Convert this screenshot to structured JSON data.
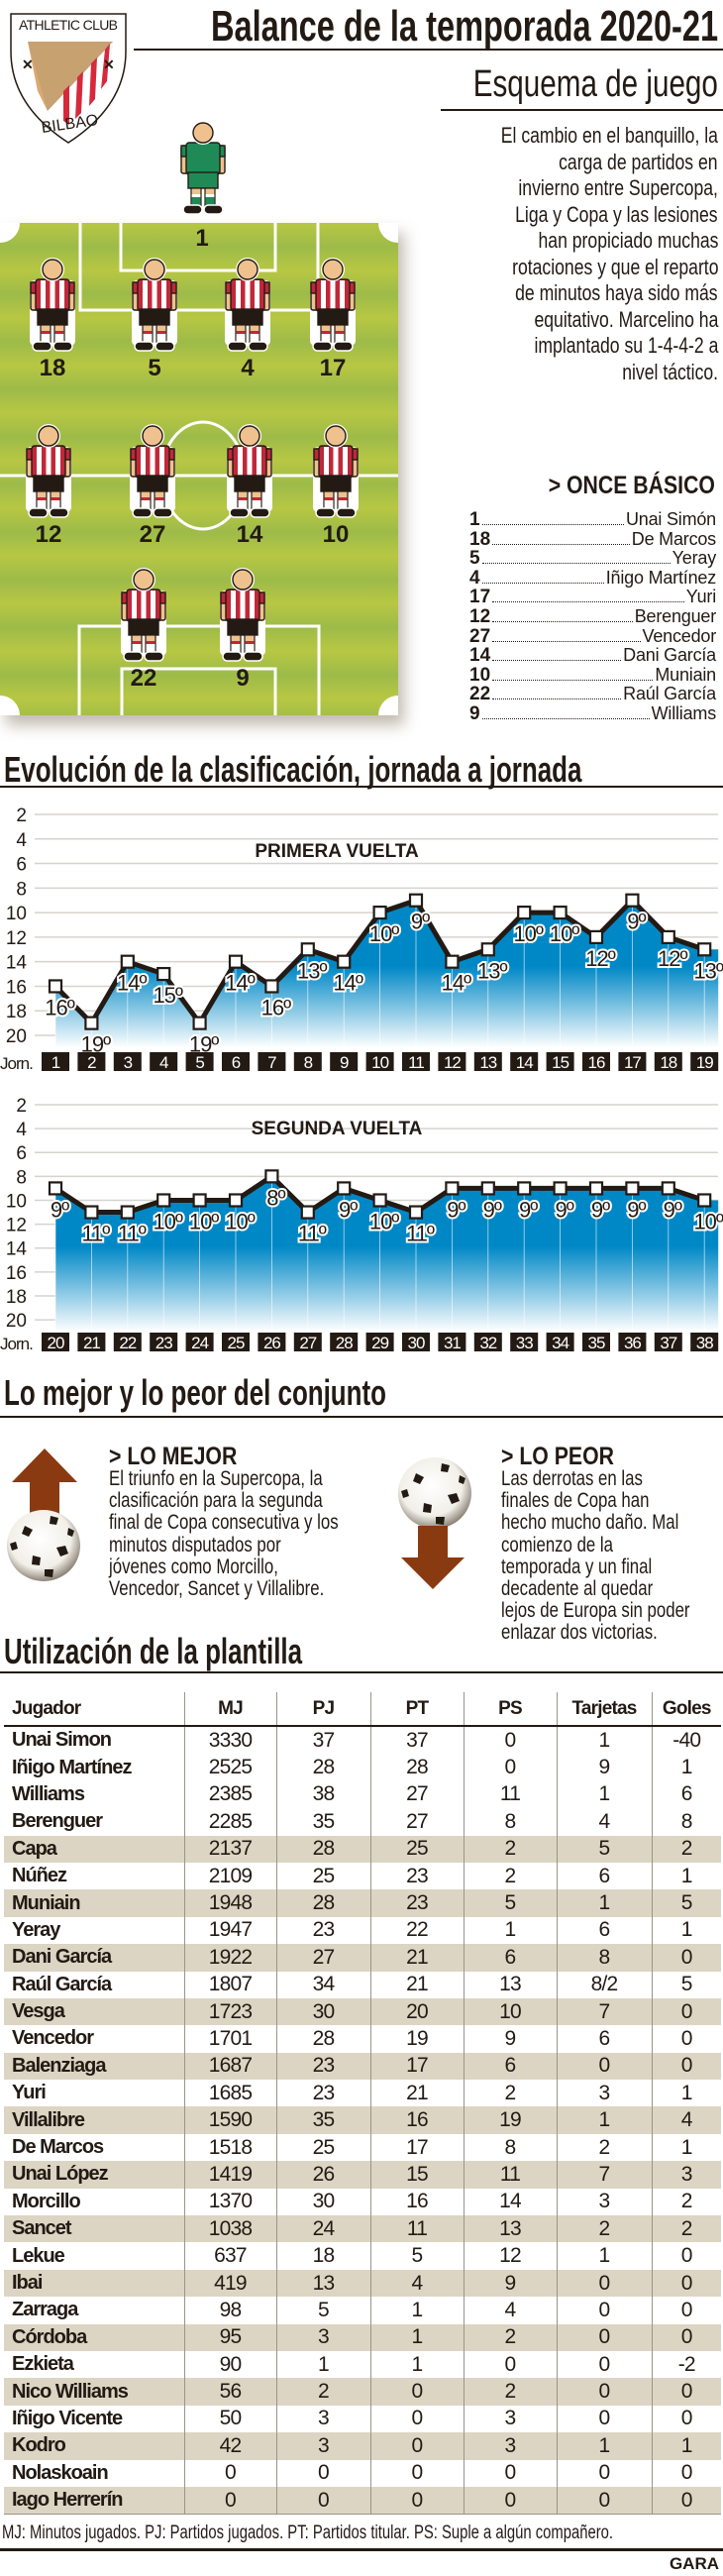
{
  "header": {
    "title": "Balance de la temporada 2020-21",
    "crest_top": "ATHLETIC CLUB",
    "crest_bottom": "BILBAO"
  },
  "esquema": {
    "title": "Esquema de juego",
    "lines": [
      "El cambio en el banquillo, la",
      "carga de partidos en",
      "invierno entre Supercopa,",
      "Liga y Copa y las lesiones",
      "han propiciado muchas",
      "rotaciones y que el reparto",
      "de minutos haya sido más",
      "equitativo. Marcelino ha",
      "implantado su 1-4-4-2 a",
      "nivel táctico."
    ],
    "goalkeeper_number": "1",
    "field_numbers": [
      "18",
      "5",
      "4",
      "17",
      "12",
      "27",
      "14",
      "10",
      "22",
      "9"
    ]
  },
  "once": {
    "title": "> ONCE BÁSICO",
    "items": [
      {
        "n": "1",
        "name": "Unai Simón"
      },
      {
        "n": "18",
        "name": "De Marcos"
      },
      {
        "n": "5",
        "name": "Yeray"
      },
      {
        "n": "4",
        "name": "Iñigo Martínez"
      },
      {
        "n": "17",
        "name": "Yuri"
      },
      {
        "n": "12",
        "name": "Berenguer"
      },
      {
        "n": "27",
        "name": "Vencedor"
      },
      {
        "n": "14",
        "name": "Dani García"
      },
      {
        "n": "10",
        "name": "Muniain"
      },
      {
        "n": "22",
        "name": "Raúl García"
      },
      {
        "n": "9",
        "name": "Williams"
      }
    ]
  },
  "evolucion": {
    "title": "Evolución de la clasificación, jornada a jornada",
    "jorn_label": "Jorn."
  },
  "chart_data": [
    {
      "type": "line",
      "title": "PRIMERA VUELTA",
      "xlabel": "Jorn.",
      "ylabel": "",
      "x": [
        1,
        2,
        3,
        4,
        5,
        6,
        7,
        8,
        9,
        10,
        11,
        12,
        13,
        14,
        15,
        16,
        17,
        18,
        19
      ],
      "values": [
        16,
        19,
        14,
        15,
        19,
        14,
        16,
        13,
        14,
        10,
        9,
        14,
        13,
        10,
        10,
        12,
        9,
        12,
        13
      ],
      "label_suffix": "º",
      "yticks": [
        2,
        4,
        6,
        8,
        10,
        12,
        14,
        16,
        18,
        20
      ],
      "ylim": [
        2,
        20
      ],
      "y_inverted": true,
      "grid": true
    },
    {
      "type": "line",
      "title": "SEGUNDA VUELTA",
      "xlabel": "Jorn.",
      "ylabel": "",
      "x": [
        20,
        21,
        22,
        23,
        24,
        25,
        26,
        27,
        28,
        29,
        30,
        31,
        32,
        33,
        34,
        35,
        36,
        37,
        38
      ],
      "values": [
        9,
        11,
        11,
        10,
        10,
        10,
        8,
        11,
        9,
        10,
        11,
        9,
        9,
        9,
        9,
        9,
        9,
        9,
        10
      ],
      "label_suffix": "º",
      "yticks": [
        2,
        4,
        6,
        8,
        10,
        12,
        14,
        16,
        18,
        20
      ],
      "ylim": [
        2,
        20
      ],
      "y_inverted": true,
      "grid": true
    }
  ],
  "mejor_peor": {
    "title": "Lo mejor y lo peor del conjunto",
    "mejor": {
      "title": "> LO MEJOR",
      "lines": [
        "El triunfo en la Supercopa, la",
        "clasificación para la segunda",
        "final de Copa consecutiva y los",
        "minutos disputados por",
        "jóvenes como Morcillo,",
        "Vencedor, Sancet y Villalibre."
      ]
    },
    "peor": {
      "title": "> LO PEOR",
      "lines": [
        "Las derrotas en las",
        "finales de Copa han",
        "hecho mucho daño. Mal",
        "comienzo de la",
        "temporada y un final",
        "decadente al quedar",
        "lejos de Europa sin poder",
        "enlazar dos victorias."
      ]
    }
  },
  "plantilla": {
    "title": "Utilización de la plantilla",
    "columns": [
      "Jugador",
      "MJ",
      "PJ",
      "PT",
      "PS",
      "Tarjetas",
      "Goles"
    ],
    "rows": [
      [
        "Unai Simon",
        "3330",
        "37",
        "37",
        "0",
        "1",
        "-40"
      ],
      [
        "Iñigo Martínez",
        "2525",
        "28",
        "28",
        "0",
        "9",
        "1"
      ],
      [
        "Williams",
        "2385",
        "38",
        "27",
        "11",
        "1",
        "6"
      ],
      [
        "Berenguer",
        "2285",
        "35",
        "27",
        "8",
        "4",
        "8"
      ],
      [
        "Capa",
        "2137",
        "28",
        "25",
        "2",
        "5",
        "2"
      ],
      [
        "Núñez",
        "2109",
        "25",
        "23",
        "2",
        "6",
        "1"
      ],
      [
        "Muniain",
        "1948",
        "28",
        "23",
        "5",
        "1",
        "5"
      ],
      [
        "Yeray",
        "1947",
        "23",
        "22",
        "1",
        "6",
        "1"
      ],
      [
        "Dani García",
        "1922",
        "27",
        "21",
        "6",
        "8",
        "0"
      ],
      [
        "Raúl García",
        "1807",
        "34",
        "21",
        "13",
        "8/2",
        "5"
      ],
      [
        "Vesga",
        "1723",
        "30",
        "20",
        "10",
        "7",
        "0"
      ],
      [
        "Vencedor",
        "1701",
        "28",
        "19",
        "9",
        "6",
        "0"
      ],
      [
        "Balenziaga",
        "1687",
        "23",
        "17",
        "6",
        "0",
        "0"
      ],
      [
        "Yuri",
        "1685",
        "23",
        "21",
        "2",
        "3",
        "1"
      ],
      [
        "Villalibre",
        "1590",
        "35",
        "16",
        "19",
        "1",
        "4"
      ],
      [
        "De Marcos",
        "1518",
        "25",
        "17",
        "8",
        "2",
        "1"
      ],
      [
        "Unai López",
        "1419",
        "26",
        "15",
        "11",
        "7",
        "3"
      ],
      [
        "Morcillo",
        "1370",
        "30",
        "16",
        "14",
        "3",
        "2"
      ],
      [
        "Sancet",
        "1038",
        "24",
        "11",
        "13",
        "2",
        "2"
      ],
      [
        "Lekue",
        "637",
        "18",
        "5",
        "12",
        "1",
        "0"
      ],
      [
        "Ibai",
        "419",
        "13",
        "4",
        "9",
        "0",
        "0"
      ],
      [
        "Zarraga",
        "98",
        "5",
        "1",
        "4",
        "0",
        "0"
      ],
      [
        "Córdoba",
        "95",
        "3",
        "1",
        "2",
        "0",
        "0"
      ],
      [
        "Ezkieta",
        "90",
        "1",
        "1",
        "0",
        "0",
        "-2"
      ],
      [
        "Nico Williams",
        "56",
        "2",
        "0",
        "2",
        "0",
        "0"
      ],
      [
        "Iñigo Vicente",
        "50",
        "3",
        "0",
        "3",
        "0",
        "0"
      ],
      [
        "Kodro",
        "42",
        "3",
        "0",
        "3",
        "1",
        "1"
      ],
      [
        "Nolaskoain",
        "0",
        "0",
        "0",
        "0",
        "0",
        "0"
      ],
      [
        "Iago Herrerín",
        "0",
        "0",
        "0",
        "0",
        "0",
        "0"
      ]
    ],
    "footnote": "MJ: Minutos jugados. PJ: Partidos jugados. PT: Partidos titular. PS: Suple a algún compañero.",
    "source": "GARA"
  },
  "colors": {
    "ink": "#231a14",
    "shirt_red": "#c0283a",
    "gk_green": "#1f8a56",
    "chart_blue": "#0088c6",
    "arrow": "#8a3a10",
    "row_shade": "#dcd5c3"
  }
}
